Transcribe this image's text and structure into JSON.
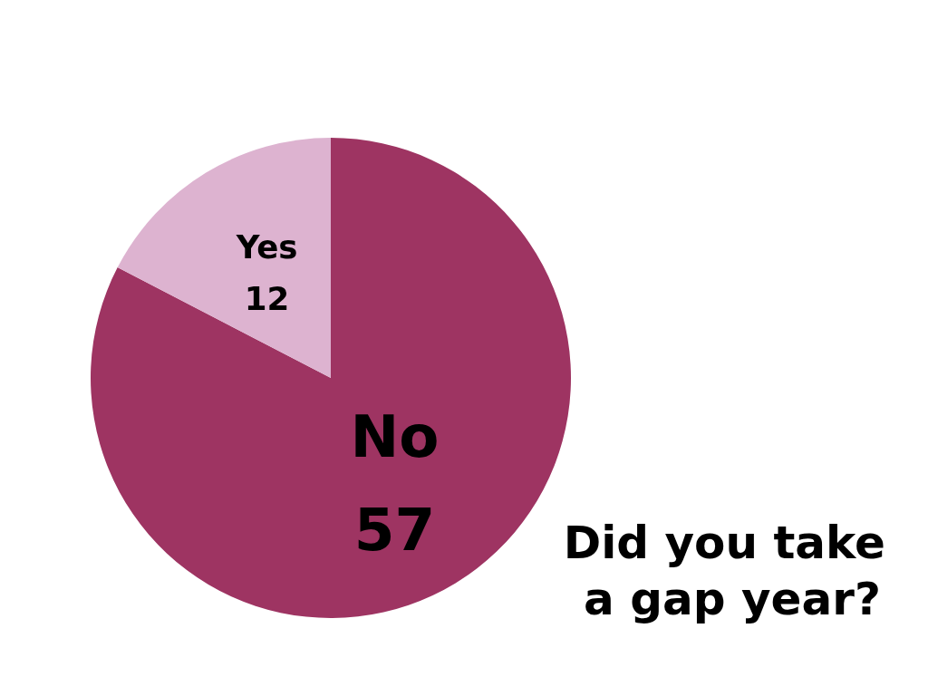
{
  "chart_data": {
    "type": "pie",
    "title": "Did you take a gap year?",
    "categories": [
      "No",
      "Yes"
    ],
    "values": [
      57,
      12
    ],
    "colors": [
      "#9e3462",
      "#ddb3d0"
    ],
    "data_labels": true,
    "legend": false
  }
}
